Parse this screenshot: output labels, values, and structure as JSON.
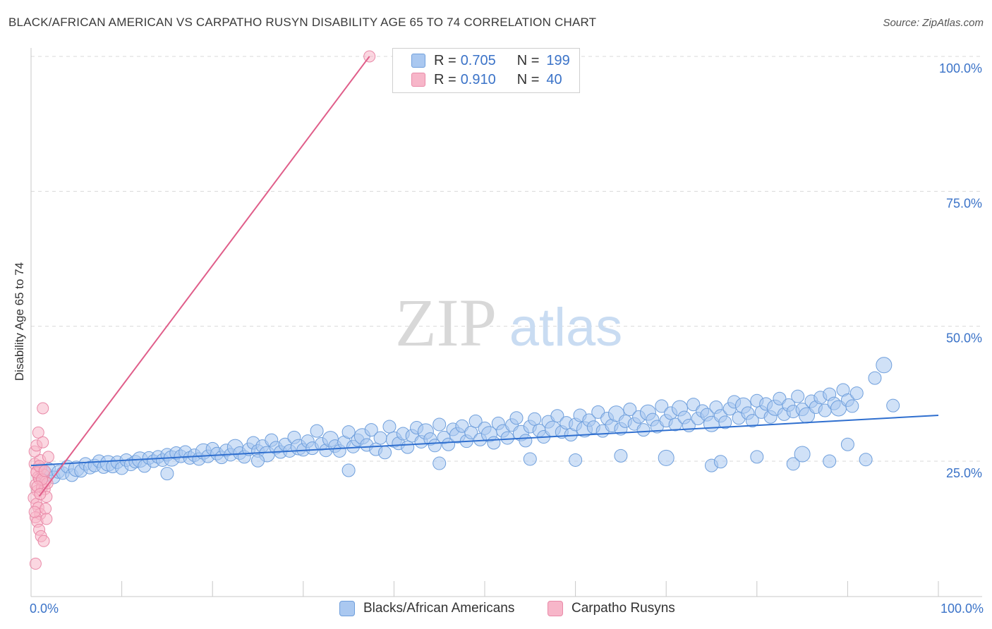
{
  "title": "BLACK/AFRICAN AMERICAN VS CARPATHO RUSYN DISABILITY AGE 65 TO 74 CORRELATION CHART",
  "source": "Source: ZipAtlas.com",
  "watermark": {
    "zip": "ZIP",
    "atlas": "atlas"
  },
  "legend": {
    "rows": [
      {
        "r_label": "R =",
        "r_value": "0.705",
        "n_label": "N =",
        "n_value": "199",
        "color": "#aac8f0"
      },
      {
        "r_label": "R =",
        "r_value": "0.910",
        "n_label": "N =",
        "n_value": "40",
        "color": "#f7b6c9"
      }
    ]
  },
  "bottom_legend": [
    {
      "label": "Blacks/African Americans",
      "color": "#aac8f0"
    },
    {
      "label": "Carpatho Rusyns",
      "color": "#f7b6c9"
    }
  ],
  "colors": {
    "blue_fill": "#aac8f0",
    "blue_stroke": "#6f9fdc",
    "blue_line": "#2f6fcf",
    "pink_fill": "#f7b6c9",
    "pink_stroke": "#e98aa8",
    "pink_line": "#e05e8a",
    "grid": "#d9d9d9",
    "axis_text": "#3b73c8"
  },
  "chart_data": {
    "type": "scatter",
    "title": "BLACK/AFRICAN AMERICAN VS CARPATHO RUSYN DISABILITY AGE 65 TO 74 CORRELATION CHART",
    "xlabel": "",
    "ylabel": "Disability Age 65 to 74",
    "xlim": [
      0,
      100
    ],
    "ylim": [
      0,
      100
    ],
    "x_tick_labels": {
      "left": "0.0%",
      "right": "100.0%"
    },
    "y_ticks": [
      {
        "value": 25,
        "label": "25.0%"
      },
      {
        "value": 50,
        "label": "50.0%"
      },
      {
        "value": 75,
        "label": "75.0%"
      },
      {
        "value": 100,
        "label": "100.0%"
      }
    ],
    "grid": true,
    "legend_position": "top-center",
    "series": [
      {
        "name": "Blacks/African Americans",
        "r": 0.705,
        "n": 199,
        "trend": {
          "x": [
            0,
            100
          ],
          "y": [
            24.2,
            33.5
          ]
        },
        "points": [
          [
            1.5,
            22.6
          ],
          [
            2,
            23.5
          ],
          [
            2.5,
            22.0
          ],
          [
            3,
            23.0
          ],
          [
            3.5,
            22.8
          ],
          [
            4,
            24.0
          ],
          [
            4.5,
            22.4
          ],
          [
            5,
            23.6
          ],
          [
            5.5,
            23.2
          ],
          [
            6,
            24.5
          ],
          [
            6.5,
            23.8
          ],
          [
            7,
            24.2
          ],
          [
            7.5,
            25.0
          ],
          [
            8,
            23.9
          ],
          [
            8.5,
            24.6
          ],
          [
            9,
            24.0
          ],
          [
            9.5,
            24.8
          ],
          [
            10,
            23.7
          ],
          [
            10.5,
            25.2
          ],
          [
            11,
            24.4
          ],
          [
            11.5,
            24.9
          ],
          [
            12,
            25.3
          ],
          [
            12.5,
            24.1
          ],
          [
            13,
            25.6
          ],
          [
            13.5,
            25.0
          ],
          [
            14,
            25.8
          ],
          [
            14.5,
            25.2
          ],
          [
            15,
            26.2
          ],
          [
            15.5,
            25.5
          ],
          [
            16,
            26.5
          ],
          [
            16.5,
            25.9
          ],
          [
            17,
            26.7
          ],
          [
            17.5,
            25.6
          ],
          [
            18,
            26.1
          ],
          [
            18.5,
            25.4
          ],
          [
            19,
            26.8
          ],
          [
            19.5,
            25.9
          ],
          [
            20,
            27.3
          ],
          [
            20.5,
            26.4
          ],
          [
            21,
            25.7
          ],
          [
            21.5,
            27.0
          ],
          [
            22,
            26.2
          ],
          [
            22.5,
            27.6
          ],
          [
            23,
            26.5
          ],
          [
            23.5,
            25.8
          ],
          [
            24,
            27.2
          ],
          [
            24.5,
            28.4
          ],
          [
            25,
            26.9
          ],
          [
            25.5,
            27.8
          ],
          [
            26,
            26.3
          ],
          [
            26.5,
            28.9
          ],
          [
            27,
            27.5
          ],
          [
            27.5,
            26.7
          ],
          [
            28,
            28.1
          ],
          [
            28.5,
            26.9
          ],
          [
            29,
            29.4
          ],
          [
            29.5,
            27.6
          ],
          [
            30,
            27.1
          ],
          [
            30.5,
            28.7
          ],
          [
            31,
            27.4
          ],
          [
            31.5,
            30.6
          ],
          [
            32,
            28.2
          ],
          [
            32.5,
            27.0
          ],
          [
            33,
            29.1
          ],
          [
            33.5,
            27.8
          ],
          [
            34,
            26.9
          ],
          [
            34.5,
            28.5
          ],
          [
            35,
            30.4
          ],
          [
            35.5,
            27.7
          ],
          [
            36,
            28.9
          ],
          [
            36.5,
            29.6
          ],
          [
            37,
            28.0
          ],
          [
            37.5,
            30.8
          ],
          [
            38,
            27.2
          ],
          [
            38.5,
            29.3
          ],
          [
            39,
            26.6
          ],
          [
            39.5,
            31.4
          ],
          [
            40,
            29.0
          ],
          [
            40.5,
            28.3
          ],
          [
            41,
            30.1
          ],
          [
            41.5,
            27.6
          ],
          [
            42,
            29.7
          ],
          [
            42.5,
            31.2
          ],
          [
            43,
            28.6
          ],
          [
            43.5,
            30.5
          ],
          [
            44,
            29.1
          ],
          [
            44.5,
            27.9
          ],
          [
            45,
            31.8
          ],
          [
            45.5,
            29.4
          ],
          [
            46,
            28.1
          ],
          [
            46.5,
            30.9
          ],
          [
            47,
            29.8
          ],
          [
            47.5,
            31.5
          ],
          [
            48,
            28.7
          ],
          [
            48.5,
            30.3
          ],
          [
            49,
            32.4
          ],
          [
            49.5,
            29.0
          ],
          [
            50,
            31.1
          ],
          [
            50.5,
            30.0
          ],
          [
            51,
            28.4
          ],
          [
            51.5,
            32.0
          ],
          [
            52,
            30.6
          ],
          [
            52.5,
            29.3
          ],
          [
            53,
            31.7
          ],
          [
            53.5,
            33.0
          ],
          [
            54,
            30.2
          ],
          [
            54.5,
            28.8
          ],
          [
            55,
            31.4
          ],
          [
            55.5,
            32.8
          ],
          [
            56,
            30.7
          ],
          [
            56.5,
            29.5
          ],
          [
            57,
            32.3
          ],
          [
            57.5,
            31.0
          ],
          [
            58,
            33.4
          ],
          [
            58.5,
            30.4
          ],
          [
            59,
            32.1
          ],
          [
            59.5,
            29.9
          ],
          [
            60,
            31.8
          ],
          [
            60.5,
            33.5
          ],
          [
            61,
            30.9
          ],
          [
            61.5,
            32.6
          ],
          [
            62,
            31.3
          ],
          [
            62.5,
            34.1
          ],
          [
            63,
            30.6
          ],
          [
            63.5,
            32.9
          ],
          [
            64,
            31.6
          ],
          [
            64.5,
            33.8
          ],
          [
            65,
            31.0
          ],
          [
            65.5,
            32.4
          ],
          [
            66,
            34.6
          ],
          [
            66.5,
            31.9
          ],
          [
            67,
            33.2
          ],
          [
            67.5,
            30.8
          ],
          [
            68,
            34.0
          ],
          [
            68.5,
            32.7
          ],
          [
            69,
            31.4
          ],
          [
            69.5,
            35.2
          ],
          [
            70,
            32.5
          ],
          [
            70.5,
            33.9
          ],
          [
            71,
            31.8
          ],
          [
            71.5,
            34.8
          ],
          [
            72,
            33.1
          ],
          [
            72.5,
            31.6
          ],
          [
            73,
            35.5
          ],
          [
            73.5,
            32.9
          ],
          [
            74,
            34.3
          ],
          [
            74.5,
            33.6
          ],
          [
            75,
            31.9
          ],
          [
            75.5,
            35.0
          ],
          [
            76,
            33.4
          ],
          [
            76.5,
            32.2
          ],
          [
            77,
            34.7
          ],
          [
            77.5,
            36.0
          ],
          [
            78,
            33.0
          ],
          [
            78.5,
            35.3
          ],
          [
            79,
            33.9
          ],
          [
            79.5,
            32.5
          ],
          [
            80,
            36.2
          ],
          [
            80.5,
            34.1
          ],
          [
            81,
            35.6
          ],
          [
            81.5,
            33.2
          ],
          [
            82,
            34.9
          ],
          [
            82.5,
            36.6
          ],
          [
            83,
            33.7
          ],
          [
            83.5,
            35.4
          ],
          [
            84,
            34.2
          ],
          [
            84.5,
            37.0
          ],
          [
            85,
            34.6
          ],
          [
            85.5,
            33.5
          ],
          [
            86,
            36.1
          ],
          [
            86.5,
            35.0
          ],
          [
            87,
            36.8
          ],
          [
            87.5,
            34.4
          ],
          [
            88,
            37.4
          ],
          [
            88.5,
            35.7
          ],
          [
            89,
            34.8
          ],
          [
            89.5,
            38.2
          ],
          [
            90,
            36.3
          ],
          [
            90.5,
            35.2
          ],
          [
            91,
            37.6
          ],
          [
            35,
            23.3
          ],
          [
            60,
            25.2
          ],
          [
            70,
            25.6
          ],
          [
            75,
            24.2
          ],
          [
            80,
            25.8
          ],
          [
            84,
            24.5
          ],
          [
            88,
            25.0
          ],
          [
            92,
            25.3
          ],
          [
            93,
            40.4
          ],
          [
            94,
            42.8
          ],
          [
            15,
            22.7
          ],
          [
            25,
            25.1
          ],
          [
            45,
            24.6
          ],
          [
            55,
            25.4
          ],
          [
            65,
            26.0
          ],
          [
            76,
            24.9
          ],
          [
            85,
            26.3
          ],
          [
            90,
            28.1
          ],
          [
            95,
            35.3
          ]
        ]
      },
      {
        "name": "Carpatho Rusyns",
        "r": 0.91,
        "n": 40,
        "trend": {
          "x": [
            0.9,
            37.3
          ],
          "y": [
            18.5,
            100
          ]
        },
        "points": [
          [
            0.4,
            24.5
          ],
          [
            0.6,
            23.0
          ],
          [
            0.8,
            22.1
          ],
          [
            1.0,
            25.2
          ],
          [
            0.5,
            20.6
          ],
          [
            0.7,
            19.5
          ],
          [
            0.9,
            21.7
          ],
          [
            1.1,
            23.6
          ],
          [
            0.3,
            18.2
          ],
          [
            0.6,
            17.1
          ],
          [
            0.8,
            16.4
          ],
          [
            1.0,
            15.2
          ],
          [
            0.5,
            14.6
          ],
          [
            0.7,
            13.8
          ],
          [
            1.2,
            20.1
          ],
          [
            1.4,
            22.5
          ],
          [
            1.6,
            21.2
          ],
          [
            0.4,
            26.8
          ],
          [
            0.6,
            27.9
          ],
          [
            0.8,
            30.3
          ],
          [
            1.3,
            28.5
          ],
          [
            1.5,
            19.8
          ],
          [
            1.7,
            18.4
          ],
          [
            0.9,
            12.3
          ],
          [
            1.1,
            11.1
          ],
          [
            1.4,
            10.2
          ],
          [
            0.5,
            6.0
          ],
          [
            1.3,
            34.8
          ],
          [
            1.6,
            16.2
          ],
          [
            1.8,
            20.9
          ],
          [
            0.6,
            22.9
          ],
          [
            0.9,
            24.1
          ],
          [
            1.2,
            21.6
          ],
          [
            1.5,
            23.2
          ],
          [
            0.7,
            20.3
          ],
          [
            1.0,
            18.9
          ],
          [
            1.9,
            25.8
          ],
          [
            0.4,
            15.6
          ],
          [
            1.7,
            14.3
          ],
          [
            37.3,
            100.0
          ]
        ]
      }
    ]
  }
}
